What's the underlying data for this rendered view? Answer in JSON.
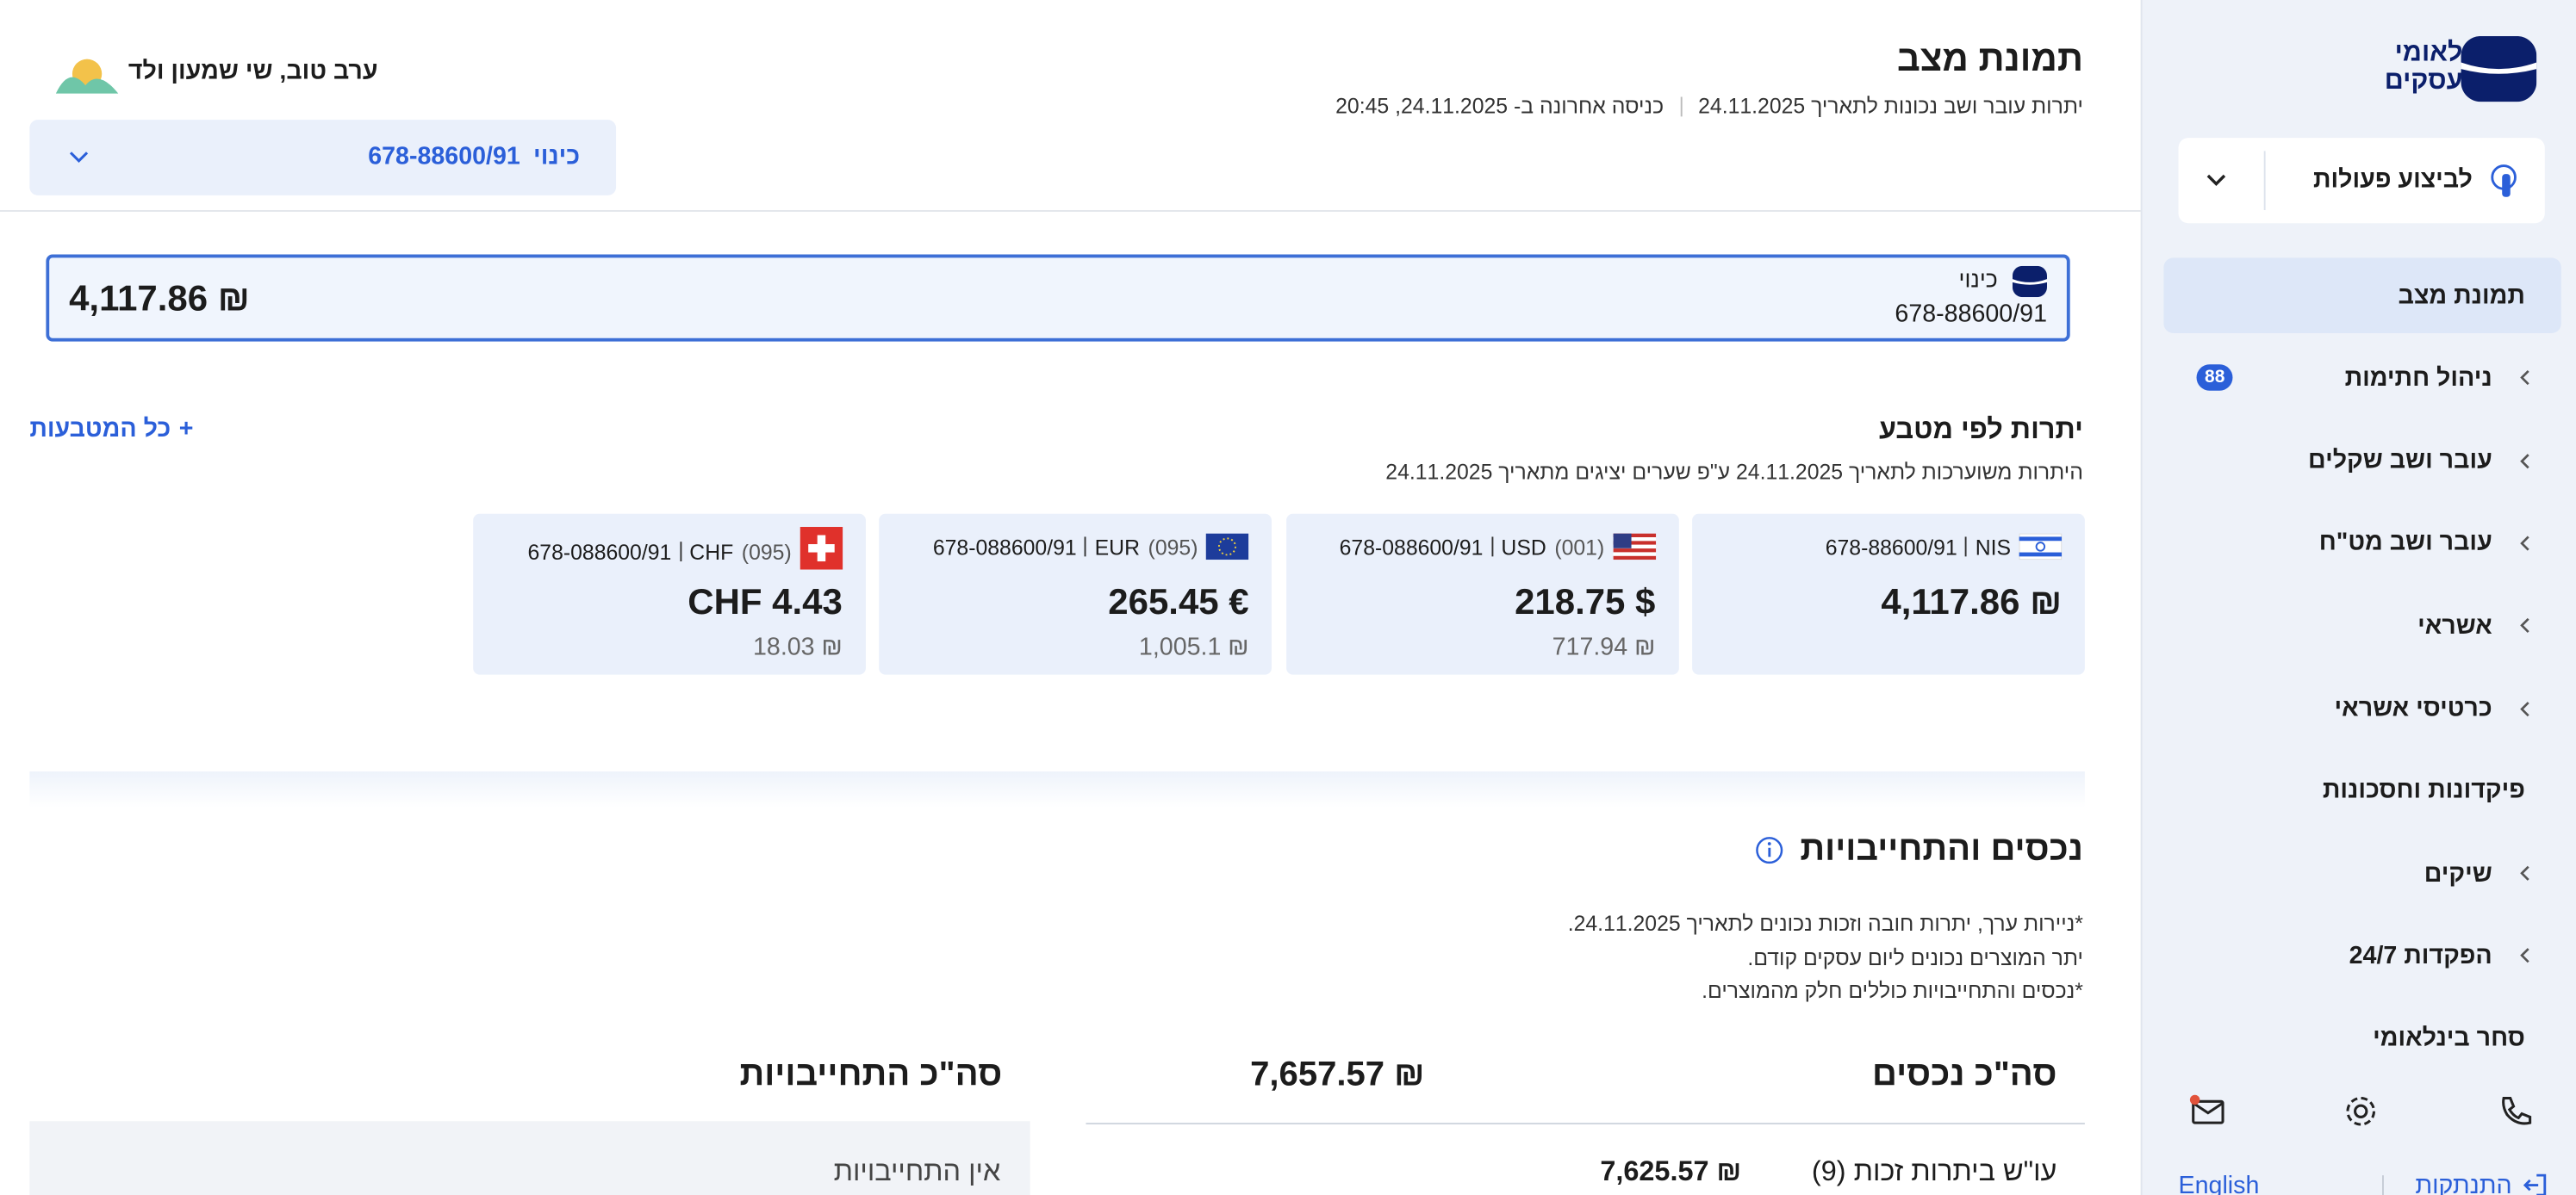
{
  "sidebar": {
    "brand": [
      "לאומי",
      "עסקים"
    ],
    "actions_button": "לביצוע פעולות",
    "menu": [
      {
        "label": "תמונת מצב",
        "active": true
      },
      {
        "label": "ניהול חתימות",
        "expandable": true,
        "badge": 88
      },
      {
        "label": "עובר ושב שקלים",
        "expandable": true
      },
      {
        "label": "עובר ושב מט\"ח",
        "expandable": true
      },
      {
        "label": "אשראי",
        "expandable": true
      },
      {
        "label": "כרטיסי אשראי",
        "expandable": true
      },
      {
        "label": "פיקדונות וחסכונות"
      },
      {
        "label": "שיקים",
        "expandable": true
      },
      {
        "label": "הפקדות 24/7",
        "expandable": true
      },
      {
        "label": "סחר בינלאומי"
      }
    ],
    "logout": "התנתקות",
    "language": "English"
  },
  "header": {
    "title": "תמונת מצב",
    "balance_note": "יתרות עובר ושב נכונות לתאריך 24.11.2025",
    "last_login": "כניסה אחרונה ב- 24.11.2025, 20:45",
    "greeting": "ערב טוב, שי שמעון ולד",
    "account_selector": {
      "label": "כינוי",
      "number": "678-88600/91"
    }
  },
  "account_card": {
    "nickname": "כינוי",
    "number": "678-88600/91",
    "balance": "4,117.86 ₪"
  },
  "currencies": {
    "title": "יתרות לפי מטבע",
    "subtitle": "היתרות משוערכות לתאריך 24.11.2025 ע\"פ שערים יציגים מתאריך 24.11.2025",
    "all_link": "כל המטבעות",
    "cards": [
      {
        "flag": "IL",
        "code": "NIS",
        "account": "678-88600/91",
        "amount": "4,117.86 ₪"
      },
      {
        "flag": "US",
        "code_id": "(001)",
        "code": "USD",
        "account": "678-088600/91",
        "amount": "218.75 $",
        "nis": "717.94 ₪"
      },
      {
        "flag": "EU",
        "code_id": "(095)",
        "code": "EUR",
        "account": "678-088600/91",
        "amount": "265.45 €",
        "nis": "1,005.1 ₪"
      },
      {
        "flag": "CH",
        "code_id": "(095)",
        "code": "CHF",
        "account": "678-088600/91",
        "amount": "CHF 4.43",
        "nis": "18.03 ₪"
      }
    ]
  },
  "assets": {
    "title": "נכסים והתחייבויות",
    "notes": [
      "*ניירות ערך, יתרות חובה וזכות נכונים לתאריך 24.11.2025.",
      "יתר המוצרים נכונים ליום עסקים קודם.",
      "*נכסים והתחייבויות כוללים חלק מהמוצרים."
    ],
    "total_assets_label": "סה\"כ נכסים",
    "total_assets": "7,657.57 ₪",
    "total_liabilities_label": "סה\"כ התחייבויות",
    "no_liabilities": "אין התחייבויות",
    "row": {
      "label": "עו\"ש ביתרות זכות (9)",
      "amount": "7,625.57 ₪"
    }
  }
}
